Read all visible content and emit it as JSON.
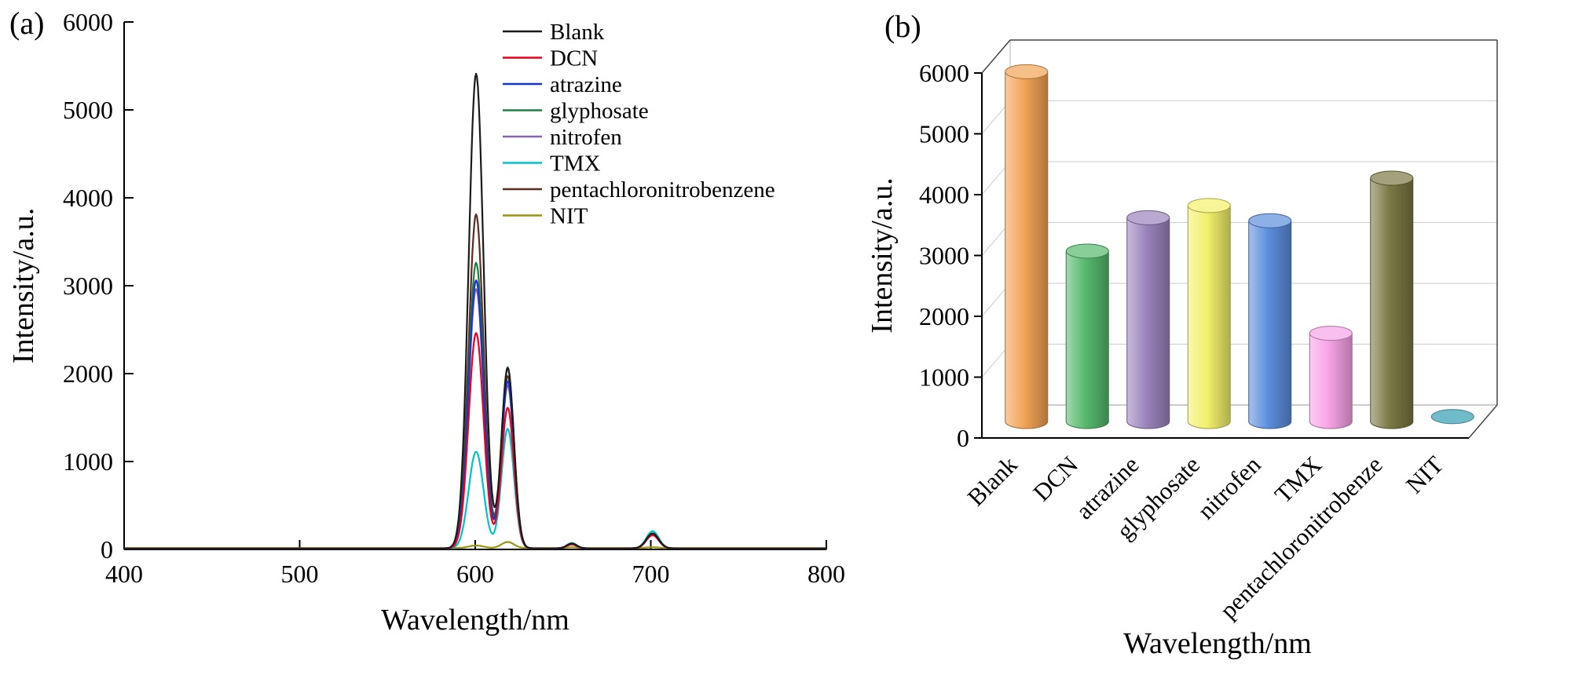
{
  "figure": {
    "background": "#ffffff",
    "panel_a_label": "(a)",
    "panel_b_label": "(b)"
  },
  "chart_data": [
    {
      "id": "panel-a-emission-spectra",
      "type": "line",
      "title": "",
      "xlabel": "Wavelength/nm",
      "ylabel": "Intensity/a.u.",
      "xlim": [
        400,
        800
      ],
      "ylim": [
        0,
        6000
      ],
      "x_ticks": [
        400,
        500,
        600,
        700,
        800
      ],
      "y_ticks": [
        0,
        1000,
        2000,
        3000,
        4000,
        5000,
        6000
      ],
      "grid": false,
      "legend_position": "top-center-inside",
      "peak_centers_nm": {
        "main": 600.5,
        "secondary": 618.5,
        "minor": 655,
        "far": 701
      },
      "peak_sigmas_nm": {
        "main": 6,
        "secondary": 5,
        "minor": 4,
        "far": 5
      },
      "series": [
        {
          "name": "Blank",
          "color": "#1a1a1a",
          "baseline": 12,
          "peaks": {
            "main": 5400,
            "secondary": 2050,
            "minor": 55,
            "far": 170
          }
        },
        {
          "name": "DCN",
          "color": "#e8001c",
          "baseline": 12,
          "peaks": {
            "main": 2450,
            "secondary": 1600,
            "minor": 45,
            "far": 150
          }
        },
        {
          "name": "atrazine",
          "color": "#1437c8",
          "baseline": 12,
          "peaks": {
            "main": 3050,
            "secondary": 1900,
            "minor": 50,
            "far": 155
          }
        },
        {
          "name": "glyphosate",
          "color": "#1d7f42",
          "baseline": 12,
          "peaks": {
            "main": 3250,
            "secondary": 2060,
            "minor": 55,
            "far": 160
          }
        },
        {
          "name": "nitrofen",
          "color": "#8a62b4",
          "baseline": 12,
          "peaks": {
            "main": 2950,
            "secondary": 1850,
            "minor": 45,
            "far": 150
          }
        },
        {
          "name": "TMX",
          "color": "#00c2cb",
          "baseline": 12,
          "peaks": {
            "main": 1100,
            "secondary": 1360,
            "minor": 60,
            "far": 195
          }
        },
        {
          "name": "pentachloronitrobenzene",
          "color": "#5a2c22",
          "baseline": 12,
          "peaks": {
            "main": 3800,
            "secondary": 1960,
            "minor": 50,
            "far": 155
          }
        },
        {
          "name": "NIT",
          "color": "#9a9410",
          "baseline": 15,
          "peaks": {
            "main": 30,
            "secondary": 70,
            "minor": 10,
            "far": 10
          }
        }
      ]
    },
    {
      "id": "panel-b-intensity-bars",
      "type": "bar",
      "style": "3d-cylinder",
      "title": "",
      "xlabel": "Wavelength/nm",
      "ylabel": "Intensity/a.u.",
      "ylim": [
        0,
        6000
      ],
      "y_ticks": [
        0,
        1000,
        2000,
        3000,
        4000,
        5000,
        6000
      ],
      "grid": true,
      "categories": [
        "Blank",
        "DCN",
        "atrazine",
        "glyphosate",
        "nitrofen",
        "TMX",
        "pentachloronitrobenze",
        "NIT"
      ],
      "values": [
        5750,
        2800,
        3350,
        3550,
        3300,
        1450,
        4000,
        80
      ],
      "bar_colors": [
        "#f2a355",
        "#56b96d",
        "#9b84bd",
        "#f3f06c",
        "#5c8edd",
        "#f7a3e6",
        "#7a7843",
        "#5fb3c4"
      ]
    }
  ]
}
